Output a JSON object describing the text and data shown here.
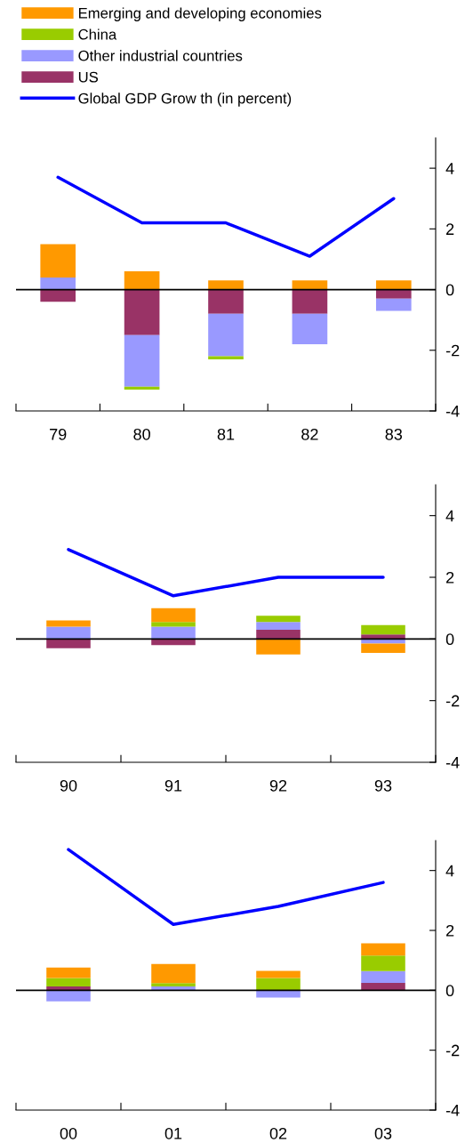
{
  "chart_data": [
    {
      "type": "bar",
      "stacked": true,
      "categories": [
        "79",
        "80",
        "81",
        "82",
        "83"
      ],
      "ylim": [
        -4,
        5
      ],
      "yticks": [
        -4,
        -2,
        0,
        2,
        4
      ],
      "legend": "top",
      "grid": false,
      "ref_lines": [
        {
          "axis": "y",
          "value": 0,
          "color": "#000000"
        }
      ],
      "series": [
        {
          "name": "US",
          "color": "#993366",
          "values": [
            -0.4,
            -1.5,
            -0.8,
            -0.8,
            -0.3
          ]
        },
        {
          "name": "Other industrial countries",
          "color": "#9999ff",
          "values": [
            0.4,
            -1.7,
            -1.4,
            -1.0,
            -0.4
          ]
        },
        {
          "name": "China",
          "color": "#99cc00",
          "values": [
            0,
            -0.1,
            -0.1,
            0,
            0
          ]
        },
        {
          "name": "Emerging and developing economies",
          "color": "#ff9900",
          "values": [
            1.1,
            0.6,
            0.3,
            0.3,
            0.3
          ]
        },
        {
          "name": "Global GDP Grow th (in percent)",
          "type": "line",
          "color": "#0000ff",
          "values": [
            3.7,
            2.2,
            2.2,
            1.1,
            3.0
          ]
        }
      ]
    },
    {
      "type": "bar",
      "stacked": true,
      "categories": [
        "90",
        "91",
        "92",
        "93"
      ],
      "ylim": [
        -4,
        5
      ],
      "yticks": [
        -4,
        -2,
        0,
        2,
        4
      ],
      "grid": false,
      "ref_lines": [
        {
          "axis": "y",
          "value": 0,
          "color": "#000000"
        }
      ],
      "series": [
        {
          "color": "#993366",
          "values": [
            -0.3,
            -0.2,
            0.3,
            0.15
          ]
        },
        {
          "color": "#9999ff",
          "values": [
            0.4,
            0.4,
            0.25,
            -0.15
          ]
        },
        {
          "color": "#99cc00",
          "values": [
            0,
            0.15,
            0.2,
            0.3
          ]
        },
        {
          "color": "#ff9900",
          "values": [
            0.2,
            0.45,
            -0.5,
            -0.3
          ]
        },
        {
          "type": "line",
          "color": "#0000ff",
          "values": [
            2.9,
            1.4,
            2.0,
            2.0
          ]
        }
      ]
    },
    {
      "type": "bar",
      "stacked": true,
      "categories": [
        "00",
        "01",
        "02",
        "03"
      ],
      "ylim": [
        -4,
        5
      ],
      "yticks": [
        -4,
        -2,
        0,
        2,
        4
      ],
      "grid": false,
      "ref_lines": [
        {
          "axis": "y",
          "value": 0,
          "color": "#000000"
        }
      ],
      "series": [
        {
          "color": "#993366",
          "values": [
            0.13,
            0,
            0,
            0.25
          ]
        },
        {
          "color": "#9999ff",
          "values": [
            -0.37,
            0.13,
            -0.24,
            0.39
          ]
        },
        {
          "color": "#99cc00",
          "values": [
            0.28,
            0.11,
            0.41,
            0.52
          ]
        },
        {
          "color": "#ff9900",
          "values": [
            0.35,
            0.64,
            0.24,
            0.41
          ]
        },
        {
          "type": "line",
          "color": "#0000ff",
          "values": [
            4.7,
            2.2,
            2.8,
            3.6
          ]
        }
      ]
    }
  ]
}
